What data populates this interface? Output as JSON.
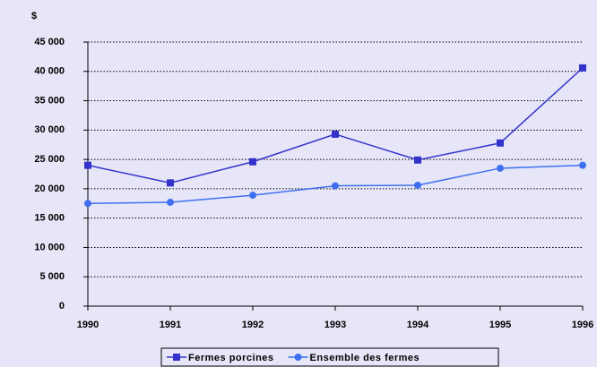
{
  "chart_data": {
    "type": "line",
    "y_label": "$",
    "x": [
      1990,
      1991,
      1992,
      1993,
      1994,
      1995,
      1996
    ],
    "xlim": [
      1990,
      1996
    ],
    "xticks": [
      1990,
      1991,
      1992,
      1993,
      1994,
      1995,
      1996
    ],
    "ylim": [
      0,
      45000
    ],
    "yticks": [
      0,
      {
        "value": 5000,
        "label": "5 000"
      },
      {
        "value": 10000,
        "label": "10 000"
      },
      {
        "value": 15000,
        "label": "15 000"
      },
      {
        "value": 20000,
        "label": "20 000"
      },
      {
        "value": 25000,
        "label": "25 000"
      },
      {
        "value": 30000,
        "label": "30 000"
      },
      {
        "value": 35000,
        "label": "35 000"
      },
      {
        "value": 40000,
        "label": "40 000"
      },
      {
        "value": 45000,
        "label": "45 000"
      }
    ],
    "grid": true,
    "legend": "bottom",
    "series": [
      {
        "name": "Fermes porcines",
        "color": "#3333cc",
        "marker": "square",
        "values": [
          24000,
          21000,
          24600,
          29300,
          24900,
          27800,
          40600
        ]
      },
      {
        "name": "Ensemble des fermes",
        "color": "#3f6ff0",
        "marker": "circle",
        "values": [
          17500,
          17700,
          18900,
          20500,
          20600,
          23500,
          24000
        ]
      }
    ]
  }
}
